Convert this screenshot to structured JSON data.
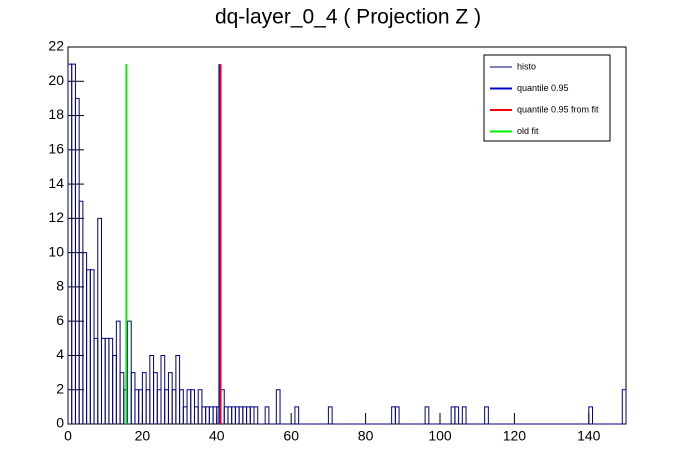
{
  "chart_data": {
    "type": "histogram",
    "title": "dq-layer_0_4 ( Projection Z )",
    "bins": [
      0,
      1,
      2,
      3,
      4,
      5,
      6,
      7,
      8,
      9,
      10,
      11,
      12,
      13,
      14,
      15,
      16,
      17,
      18,
      19,
      20,
      21,
      22,
      23,
      24,
      25,
      26,
      27,
      28,
      29,
      30,
      31,
      32,
      33,
      34,
      35,
      36,
      37,
      38,
      39,
      40,
      41,
      42,
      43,
      44,
      45,
      46,
      47,
      48,
      49,
      50,
      51,
      52,
      53,
      54,
      55,
      56,
      57,
      58,
      59,
      60,
      61,
      62,
      63,
      64,
      65,
      66,
      67,
      68,
      69,
      70,
      71,
      72,
      73,
      74,
      75,
      76,
      77,
      78,
      79,
      80,
      81,
      82,
      83,
      84,
      85,
      86,
      87,
      88,
      89,
      90,
      91,
      92,
      93,
      94,
      95,
      96,
      97,
      98,
      99,
      100,
      101,
      102,
      103,
      104,
      105,
      106,
      107,
      108,
      109,
      110,
      111,
      112,
      113,
      114,
      115,
      116,
      117,
      118,
      119,
      120,
      121,
      122,
      123,
      124,
      125,
      126,
      127,
      128,
      129,
      130,
      131,
      132,
      133,
      134,
      135,
      136,
      137,
      138,
      139,
      140,
      141,
      142,
      143,
      144,
      145,
      146,
      147,
      148,
      149,
      150
    ],
    "series": [
      {
        "name": "histo",
        "color": "#000080",
        "values": [
          21,
          21,
          19,
          13,
          10,
          9,
          9,
          5,
          12,
          5,
          5,
          5,
          4,
          6,
          3,
          2,
          6,
          3,
          2,
          2,
          3,
          2,
          4,
          3,
          2,
          4,
          2,
          3,
          2,
          4,
          2,
          1,
          2,
          2,
          1,
          2,
          1,
          1,
          1,
          1,
          1,
          2,
          1,
          1,
          1,
          1,
          1,
          1,
          1,
          1,
          1,
          0,
          0,
          1,
          0,
          0,
          2,
          0,
          0,
          0,
          0,
          1,
          0,
          0,
          0,
          0,
          0,
          0,
          0,
          0,
          1,
          0,
          0,
          0,
          0,
          0,
          0,
          0,
          0,
          0,
          0,
          0,
          0,
          0,
          0,
          0,
          0,
          1,
          1,
          0,
          0,
          0,
          0,
          0,
          0,
          0,
          1,
          0,
          0,
          0,
          0,
          0,
          0,
          1,
          1,
          0,
          1,
          0,
          0,
          0,
          0,
          0,
          1,
          0,
          0,
          0,
          0,
          0,
          0,
          0,
          0,
          0,
          0,
          0,
          0,
          0,
          0,
          0,
          0,
          0,
          0,
          0,
          0,
          0,
          0,
          0,
          0,
          0,
          0,
          0,
          1,
          0,
          0,
          0,
          0,
          0,
          0,
          0,
          0,
          2
        ]
      }
    ],
    "lines": [
      {
        "name": "quantile 0.95",
        "color": "#0000cc",
        "x": 40.7,
        "height": 21
      },
      {
        "name": "quantile 0.95 from fit",
        "color": "#ff0000",
        "x": 41.0,
        "height": 21
      },
      {
        "name": "old fit",
        "color": "#00ee00",
        "x": 15.7,
        "height": 21
      }
    ],
    "xlim": [
      0,
      150
    ],
    "xticks": [
      0,
      20,
      40,
      60,
      80,
      100,
      120,
      140
    ],
    "ylim": [
      0,
      22
    ],
    "yticks": [
      0,
      2,
      4,
      6,
      8,
      10,
      12,
      14,
      16,
      18,
      20,
      22
    ]
  }
}
